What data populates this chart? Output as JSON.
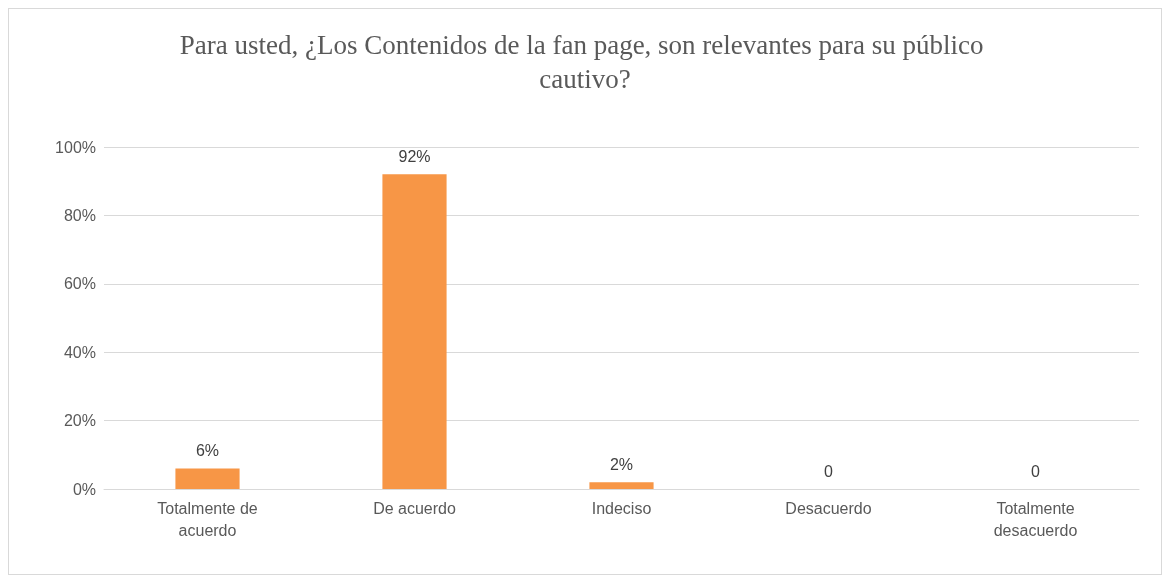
{
  "chart_data": {
    "type": "bar",
    "title": "Para usted, ¿Los Contenidos de la fan page, son relevantes para su público cautivo?",
    "categories": [
      "Totalmente de acuerdo",
      "De acuerdo",
      "Indeciso",
      "Desacuerdo",
      "Totalmente desacuerdo"
    ],
    "values": [
      6,
      92,
      2,
      0,
      0
    ],
    "value_labels": [
      "6%",
      "92%",
      "2%",
      "0",
      "0"
    ],
    "color": "#f79646",
    "ylim": [
      0,
      100
    ],
    "yticks": [
      {
        "value": 0,
        "label": "0%"
      },
      {
        "value": 20,
        "label": "20%"
      },
      {
        "value": 40,
        "label": "40%"
      },
      {
        "value": 60,
        "label": "60%"
      },
      {
        "value": 80,
        "label": "80%"
      },
      {
        "value": 100,
        "label": "100%"
      }
    ],
    "grid": "y"
  }
}
